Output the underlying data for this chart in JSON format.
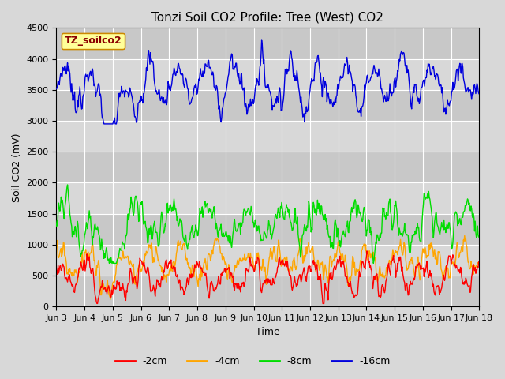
{
  "title": "Tonzi Soil CO2 Profile: Tree (West) CO2",
  "xlabel": "Time",
  "ylabel": "Soil CO2 (mV)",
  "ylim": [
    0,
    4500
  ],
  "legend_label": "TZ_soilco2",
  "series_labels": [
    "-2cm",
    "-4cm",
    "-8cm",
    "-16cm"
  ],
  "series_colors": [
    "#ff0000",
    "#ffa500",
    "#00dd00",
    "#0000dd"
  ],
  "xtick_labels": [
    "Jun 3",
    "Jun 4",
    "Jun 5",
    "Jun 6",
    "Jun 7",
    "Jun 8",
    "Jun 9",
    "Jun 10",
    "Jun 11",
    "Jun 12",
    "Jun 13",
    "Jun 14",
    "Jun 15",
    "Jun 16",
    "Jun 17",
    "Jun 18"
  ],
  "background_color": "#d8d8d8",
  "plot_bg_color": "#d0d0d0",
  "legend_box_color": "#ffff99",
  "legend_text_color": "#8b0000",
  "legend_border_color": "#cc8800",
  "grid_color": "#ffffff",
  "title_fontsize": 11,
  "axis_fontsize": 9,
  "tick_fontsize": 8
}
